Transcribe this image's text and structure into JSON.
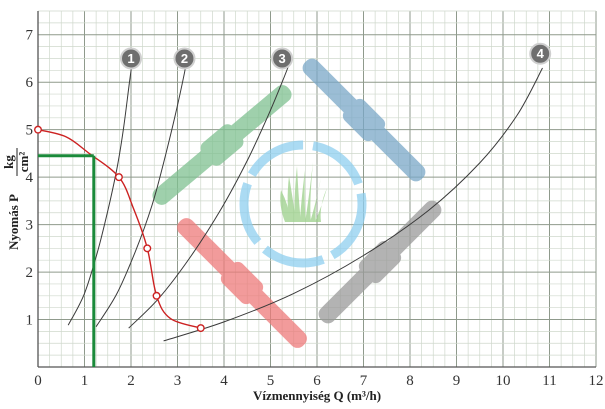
{
  "chart_data": {
    "type": "line",
    "xlabel": "Vízmennyiség  Q (m³/h)",
    "ylabel": "Nyomás  P",
    "ylabel_unit_num": "kg",
    "ylabel_unit_den": "cm²",
    "xlim": [
      0,
      12
    ],
    "ylim": [
      0,
      7.5
    ],
    "x_ticks": [
      0,
      1,
      2,
      3,
      4,
      5,
      6,
      7,
      8,
      9,
      10,
      11,
      12
    ],
    "y_ticks": [
      1,
      2,
      3,
      4,
      5,
      6,
      7
    ],
    "grid": true,
    "series": [
      {
        "name": "1",
        "color": "#3a3a3a",
        "points": [
          [
            0.65,
            0.88
          ],
          [
            1.0,
            1.55
          ],
          [
            1.3,
            2.5
          ],
          [
            1.55,
            3.5
          ],
          [
            1.72,
            4.3
          ],
          [
            1.85,
            5.1
          ],
          [
            1.98,
            6.1
          ],
          [
            2.06,
            6.65
          ]
        ]
      },
      {
        "name": "2",
        "color": "#3a3a3a",
        "points": [
          [
            1.25,
            0.85
          ],
          [
            1.7,
            1.55
          ],
          [
            2.1,
            2.45
          ],
          [
            2.45,
            3.4
          ],
          [
            2.7,
            4.3
          ],
          [
            2.95,
            5.3
          ],
          [
            3.15,
            6.2
          ],
          [
            3.22,
            6.6
          ]
        ]
      },
      {
        "name": "3",
        "color": "#3a3a3a",
        "points": [
          [
            1.95,
            0.82
          ],
          [
            2.6,
            1.45
          ],
          [
            3.3,
            2.35
          ],
          [
            3.95,
            3.35
          ],
          [
            4.5,
            4.35
          ],
          [
            4.95,
            5.3
          ],
          [
            5.25,
            6.0
          ],
          [
            5.45,
            6.5
          ]
        ]
      },
      {
        "name": "4",
        "color": "#3a3a3a",
        "points": [
          [
            2.7,
            0.55
          ],
          [
            4.0,
            0.95
          ],
          [
            5.5,
            1.55
          ],
          [
            7.0,
            2.35
          ],
          [
            8.4,
            3.3
          ],
          [
            9.5,
            4.3
          ],
          [
            10.3,
            5.3
          ],
          [
            10.85,
            6.3
          ]
        ]
      }
    ],
    "pump_curve": {
      "color": "#cc2222",
      "points": [
        [
          0,
          5.0
        ],
        [
          0.6,
          4.85
        ],
        [
          1.1,
          4.5
        ],
        [
          1.74,
          4.0
        ],
        [
          2.05,
          3.35
        ],
        [
          2.35,
          2.5
        ],
        [
          2.55,
          1.5
        ],
        [
          2.85,
          1.02
        ],
        [
          3.5,
          0.82
        ]
      ],
      "markers": [
        [
          0,
          5.0
        ],
        [
          1.74,
          4.0
        ],
        [
          2.35,
          2.5
        ],
        [
          2.55,
          1.5
        ],
        [
          3.5,
          0.82
        ]
      ]
    },
    "operating_lines": {
      "color": "#1a8a3a",
      "x": 1.2,
      "y": 4.45
    },
    "badges": [
      {
        "label": "1",
        "x": 2.0,
        "y": 6.5
      },
      {
        "label": "2",
        "x": 3.15,
        "y": 6.5
      },
      {
        "label": "3",
        "x": 5.25,
        "y": 6.5
      },
      {
        "label": "4",
        "x": 10.8,
        "y": 6.6
      }
    ]
  },
  "colors": {
    "background": "#ffffff",
    "grid_minor": "#cfd8cc",
    "grid_major": "#8f9a8c",
    "watermark_green": "#7fc191",
    "watermark_blue": "#7aa8c8",
    "watermark_grey": "#9a9a9a",
    "watermark_red": "#ee7a7a",
    "watermark_circle": "#8fcff0",
    "watermark_grass": "#9bd08a"
  }
}
